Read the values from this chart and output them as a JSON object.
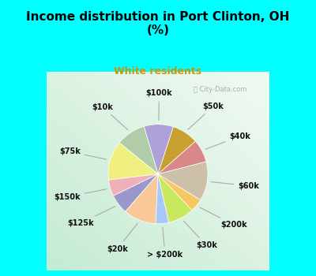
{
  "title": "Income distribution in Port Clinton, OH\n(%)",
  "subtitle": "White residents",
  "title_color": "#000000",
  "subtitle_color": "#c8960a",
  "labels": [
    "$100k",
    "$10k",
    "$75k",
    "$150k",
    "$125k",
    "$20k",
    "> $200k",
    "$30k",
    "$200k",
    "$60k",
    "$40k",
    "$50k"
  ],
  "values": [
    9,
    9,
    12,
    5,
    6,
    10,
    4,
    8,
    4,
    12,
    7,
    8
  ],
  "colors": [
    "#b0a0d8",
    "#b0cca8",
    "#f0f080",
    "#f0b0b8",
    "#9898cc",
    "#f8c898",
    "#a8c8f8",
    "#c8e860",
    "#f8c860",
    "#ccc0a8",
    "#d88888",
    "#c8a030"
  ],
  "startangle": 72
}
